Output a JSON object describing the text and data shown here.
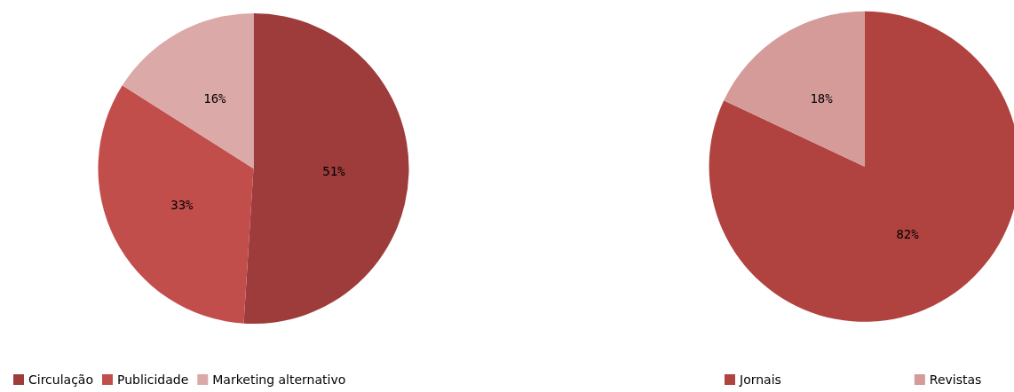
{
  "chart_data": [
    {
      "type": "pie",
      "categories": [
        "Circulação",
        "Publicidade",
        "Marketing alternativo"
      ],
      "values": [
        51,
        33,
        16
      ],
      "value_labels": [
        "51%",
        "33%",
        "16%"
      ],
      "colors": [
        "#9e3b3b",
        "#c24e4c",
        "#dba9a7"
      ],
      "legend": "bottom left"
    },
    {
      "type": "pie",
      "categories": [
        "Jornais",
        "Revistas"
      ],
      "values": [
        82,
        18
      ],
      "value_labels": [
        "82%",
        "18%"
      ],
      "colors": [
        "#b0423f",
        "#d49b99"
      ],
      "legend": "bottom"
    }
  ]
}
